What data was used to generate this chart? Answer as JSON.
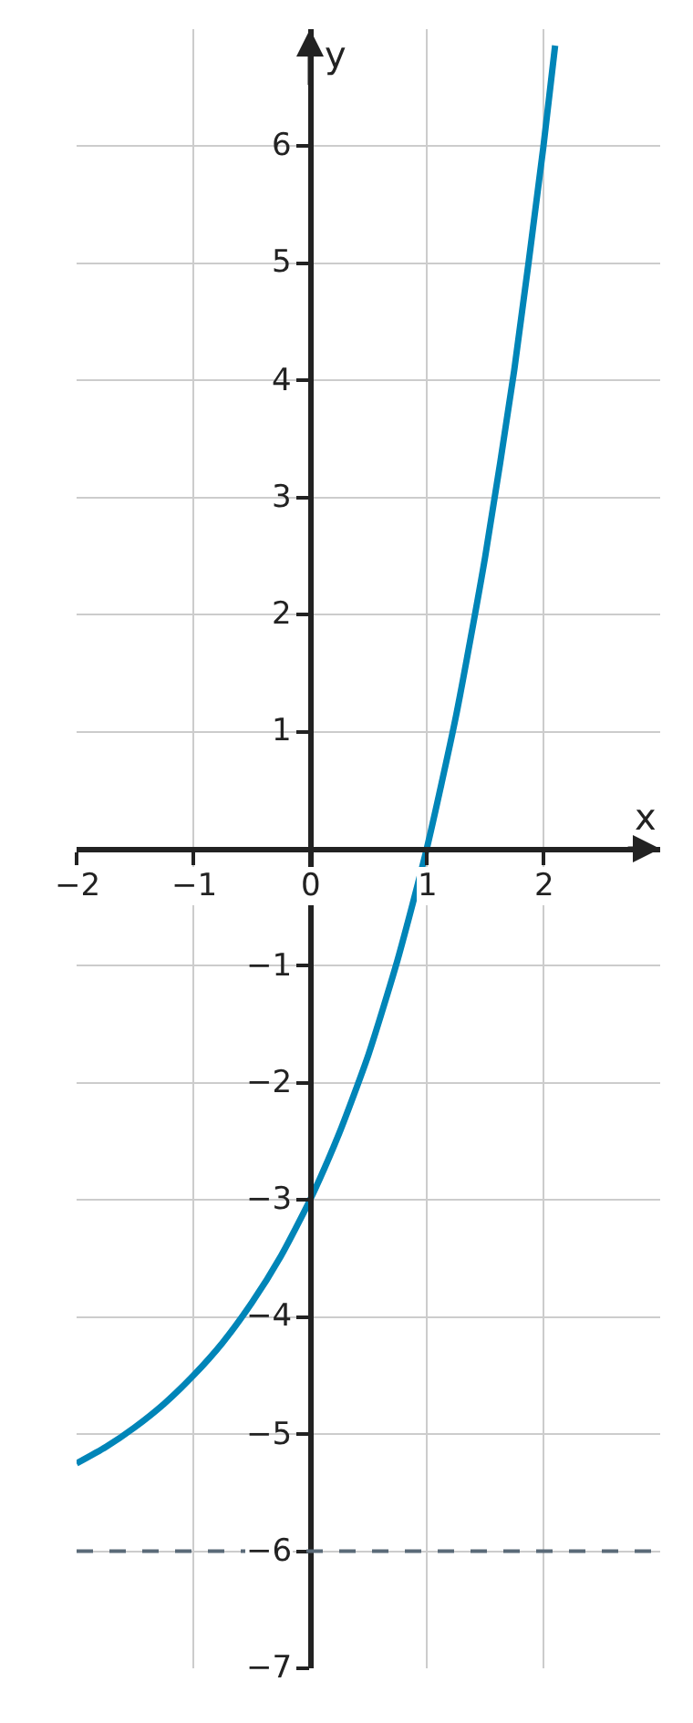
{
  "chart_data": {
    "type": "line",
    "xlabel": "x",
    "ylabel": "y",
    "x": [
      -2,
      -1.75,
      -1.5,
      -1.25,
      -1,
      -0.75,
      -0.5,
      -0.25,
      0,
      0.25,
      0.5,
      0.75,
      1,
      1.25,
      1.5,
      1.75,
      2,
      2.1
    ],
    "series": [
      {
        "color": "#0085b8",
        "values": [
          -5.25,
          -5.11,
          -4.94,
          -4.74,
          -4.5,
          -4.22,
          -3.88,
          -3.48,
          -3,
          -2.43,
          -1.76,
          -0.95,
          0,
          1.13,
          2.49,
          4.09,
          6,
          6.86
        ]
      }
    ],
    "xlim": [
      -2,
      3
    ],
    "ylim": [
      -7,
      7
    ],
    "xticks": [
      {
        "value": -2,
        "label": "−2"
      },
      {
        "value": -1,
        "label": "−1"
      },
      0,
      1,
      2
    ],
    "yticks": [
      {
        "value": -7,
        "label": "−7"
      },
      {
        "value": -6,
        "label": "−6"
      },
      {
        "value": -5,
        "label": "−5"
      },
      {
        "value": -4,
        "label": "−4"
      },
      {
        "value": -3,
        "label": "−3"
      },
      {
        "value": -2,
        "label": "−2"
      },
      {
        "value": -1,
        "label": "−1"
      },
      {
        "value": 0,
        "label": null
      },
      1,
      2,
      3,
      4,
      5,
      6
    ],
    "ref_lines": [
      {
        "axis": "y",
        "value": -6,
        "color": "#5a6a78",
        "line_style": "dashed"
      }
    ],
    "grid": true,
    "marker": "none",
    "line_style": "solid"
  }
}
